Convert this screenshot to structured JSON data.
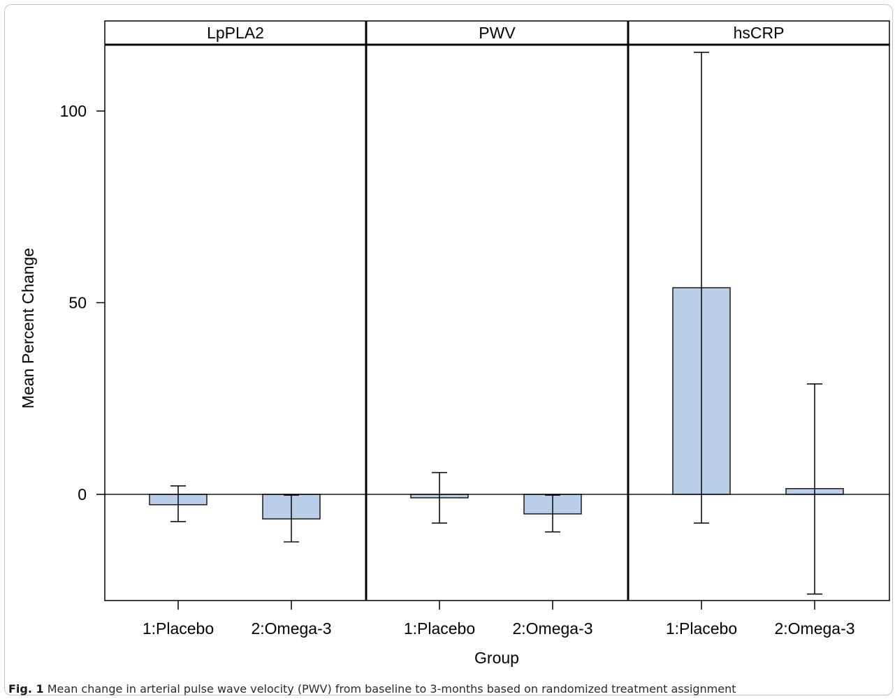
{
  "caption": {
    "label": "Fig. 1",
    "text": "Mean change in arterial pulse wave velocity (PWV) from baseline to 3-months based on randomized treatment assignment"
  },
  "chart_data": {
    "type": "bar",
    "xlabel": "Group",
    "ylabel": "Mean Percent Change",
    "ylim": [
      -27.7,
      117.3
    ],
    "yticks": [
      0,
      50,
      100
    ],
    "categories": [
      "1:Placebo",
      "2:Omega-3"
    ],
    "panels": [
      {
        "name": "LpPLA2",
        "values": [
          -2.7,
          -6.4
        ],
        "error_lower": [
          -7.1,
          -12.4
        ],
        "error_upper": [
          2.2,
          -0.2
        ]
      },
      {
        "name": "PWV",
        "values": [
          -0.9,
          -5.1
        ],
        "error_lower": [
          -7.5,
          -9.8
        ],
        "error_upper": [
          5.7,
          -0.2
        ]
      },
      {
        "name": "hsCRP",
        "values": [
          53.9,
          1.5
        ],
        "error_lower": [
          -7.5,
          -26.0
        ],
        "error_upper": [
          115.3,
          28.8
        ]
      }
    ],
    "reference_line": 0,
    "grid": false,
    "colors": {
      "bar_fill": "#b9cfe8",
      "bar_edge": "#1a1a1a"
    }
  }
}
